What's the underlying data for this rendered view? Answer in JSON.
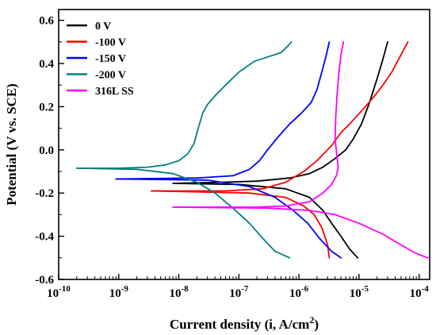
{
  "chart_data": {
    "type": "line",
    "xlabel": "Current density (i, A/cm2)",
    "xlabel_main": "Current density (i, A/cm",
    "xlabel_sup": "2",
    "xlabel_end": ")",
    "ylabel": "Potential (V vs. SCE)",
    "x_scale": "log",
    "xlim": [
      1e-10,
      0.00015
    ],
    "ylim": [
      -0.6,
      0.65
    ],
    "x_ticks": [
      {
        "value": 1e-10,
        "base": "10",
        "exp": "-10"
      },
      {
        "value": 1e-09,
        "base": "10",
        "exp": "-9"
      },
      {
        "value": 1e-08,
        "base": "10",
        "exp": "-8"
      },
      {
        "value": 1e-07,
        "base": "10",
        "exp": "-7"
      },
      {
        "value": 1e-06,
        "base": "10",
        "exp": "-6"
      },
      {
        "value": 1e-05,
        "base": "10",
        "exp": "-5"
      },
      {
        "value": 0.0001,
        "base": "10",
        "exp": "-4"
      }
    ],
    "y_ticks": [
      {
        "value": -0.6,
        "label": "-0.6"
      },
      {
        "value": -0.4,
        "label": "-0.4"
      },
      {
        "value": -0.2,
        "label": "-0.2"
      },
      {
        "value": 0.0,
        "label": "0.0"
      },
      {
        "value": 0.2,
        "label": "0.2"
      },
      {
        "value": 0.4,
        "label": "0.4"
      },
      {
        "value": 0.6,
        "label": "0.6"
      }
    ],
    "grid": false,
    "legend_position": "top-left",
    "series": [
      {
        "name": "0 V",
        "color": "#000000",
        "anodic": [
          [
            8e-09,
            -0.155
          ],
          [
            5e-08,
            -0.15
          ],
          [
            2e-07,
            -0.145
          ],
          [
            7e-07,
            -0.13
          ],
          [
            1.5e-06,
            -0.11
          ],
          [
            2.5e-06,
            -0.08
          ],
          [
            4e-06,
            -0.04
          ],
          [
            6e-06,
            0.0
          ],
          [
            8e-06,
            0.05
          ],
          [
            1.1e-05,
            0.12
          ],
          [
            1.5e-05,
            0.22
          ],
          [
            2e-05,
            0.33
          ],
          [
            2.5e-05,
            0.42
          ],
          [
            3e-05,
            0.5
          ]
        ],
        "cathodic": [
          [
            8e-09,
            -0.155
          ],
          [
            1e-07,
            -0.16
          ],
          [
            6e-07,
            -0.18
          ],
          [
            1.5e-06,
            -0.22
          ],
          [
            2.5e-06,
            -0.28
          ],
          [
            3.5e-06,
            -0.34
          ],
          [
            5e-06,
            -0.4
          ],
          [
            7e-06,
            -0.46
          ],
          [
            9.5e-06,
            -0.5
          ]
        ]
      },
      {
        "name": "-100 V",
        "color": "#ff0000",
        "anodic": [
          [
            3.5e-09,
            -0.19
          ],
          [
            6e-08,
            -0.19
          ],
          [
            2.5e-07,
            -0.18
          ],
          [
            6e-07,
            -0.15
          ],
          [
            1.2e-06,
            -0.1
          ],
          [
            2e-06,
            -0.05
          ],
          [
            3.5e-06,
            0.02
          ],
          [
            5e-06,
            0.08
          ],
          [
            7e-06,
            0.12
          ],
          [
            1.1e-05,
            0.18
          ],
          [
            1.7e-05,
            0.24
          ],
          [
            2.5e-05,
            0.3
          ],
          [
            3.5e-05,
            0.36
          ],
          [
            5e-05,
            0.44
          ],
          [
            6.5e-05,
            0.5
          ]
        ],
        "cathodic": [
          [
            3.5e-09,
            -0.19
          ],
          [
            1.5e-07,
            -0.2
          ],
          [
            6e-07,
            -0.22
          ],
          [
            1.2e-06,
            -0.26
          ],
          [
            1.8e-06,
            -0.3
          ],
          [
            2.4e-06,
            -0.36
          ],
          [
            3e-06,
            -0.44
          ],
          [
            3.2e-06,
            -0.5
          ]
        ]
      },
      {
        "name": "-150 V",
        "color": "#0000ff",
        "anodic": [
          [
            9e-10,
            -0.135
          ],
          [
            2e-08,
            -0.13
          ],
          [
            8e-08,
            -0.12
          ],
          [
            1.5e-07,
            -0.09
          ],
          [
            2.2e-07,
            -0.05
          ],
          [
            3e-07,
            0.0
          ],
          [
            4.5e-07,
            0.06
          ],
          [
            7e-07,
            0.12
          ],
          [
            1.1e-06,
            0.17
          ],
          [
            1.6e-06,
            0.22
          ],
          [
            2e-06,
            0.28
          ],
          [
            2.4e-06,
            0.36
          ],
          [
            2.8e-06,
            0.43
          ],
          [
            3.2e-06,
            0.5
          ]
        ],
        "cathodic": [
          [
            9e-10,
            -0.135
          ],
          [
            3e-08,
            -0.14
          ],
          [
            1.5e-07,
            -0.17
          ],
          [
            4e-07,
            -0.22
          ],
          [
            8e-07,
            -0.28
          ],
          [
            1.4e-06,
            -0.34
          ],
          [
            2.2e-06,
            -0.41
          ],
          [
            3.5e-06,
            -0.47
          ],
          [
            5e-06,
            -0.5
          ]
        ]
      },
      {
        "name": "-200 V",
        "color": "#008080",
        "anodic": [
          [
            2e-10,
            -0.085
          ],
          [
            1e-09,
            -0.085
          ],
          [
            3e-09,
            -0.08
          ],
          [
            6e-09,
            -0.07
          ],
          [
            1e-08,
            -0.05
          ],
          [
            1.4e-08,
            -0.02
          ],
          [
            1.8e-08,
            0.03
          ],
          [
            2.1e-08,
            0.1
          ],
          [
            2.5e-08,
            0.17
          ],
          [
            3e-08,
            0.21
          ],
          [
            4e-08,
            0.25
          ],
          [
            6e-08,
            0.3
          ],
          [
            1e-07,
            0.36
          ],
          [
            1.8e-07,
            0.41
          ],
          [
            3e-07,
            0.43
          ],
          [
            5e-07,
            0.45
          ],
          [
            6.5e-07,
            0.48
          ],
          [
            7.5e-07,
            0.5
          ]
        ],
        "cathodic": [
          [
            2e-10,
            -0.085
          ],
          [
            2e-09,
            -0.09
          ],
          [
            8e-09,
            -0.11
          ],
          [
            2e-08,
            -0.15
          ],
          [
            4e-08,
            -0.2
          ],
          [
            8e-08,
            -0.27
          ],
          [
            1.5e-07,
            -0.34
          ],
          [
            2.5e-07,
            -0.41
          ],
          [
            4e-07,
            -0.47
          ],
          [
            7e-07,
            -0.5
          ]
        ]
      },
      {
        "name": "316L SS",
        "color": "#ff00ff",
        "anodic": [
          [
            8e-09,
            -0.265
          ],
          [
            2e-07,
            -0.265
          ],
          [
            6e-07,
            -0.26
          ],
          [
            1.5e-06,
            -0.24
          ],
          [
            2.5e-06,
            -0.2
          ],
          [
            3.5e-06,
            -0.16
          ],
          [
            4.2e-06,
            -0.12
          ],
          [
            4.5e-06,
            -0.08
          ],
          [
            4.3e-06,
            -0.03
          ],
          [
            4e-06,
            0.05
          ],
          [
            4.1e-06,
            0.15
          ],
          [
            4.3e-06,
            0.25
          ],
          [
            4.6e-06,
            0.35
          ],
          [
            5e-06,
            0.44
          ],
          [
            5.5e-06,
            0.5
          ]
        ],
        "cathodic": [
          [
            8e-09,
            -0.265
          ],
          [
            3e-07,
            -0.27
          ],
          [
            1.5e-06,
            -0.28
          ],
          [
            4e-06,
            -0.3
          ],
          [
            1e-05,
            -0.34
          ],
          [
            2.5e-05,
            -0.39
          ],
          [
            5e-05,
            -0.44
          ],
          [
            9e-05,
            -0.48
          ],
          [
            0.00014,
            -0.5
          ]
        ]
      }
    ]
  }
}
